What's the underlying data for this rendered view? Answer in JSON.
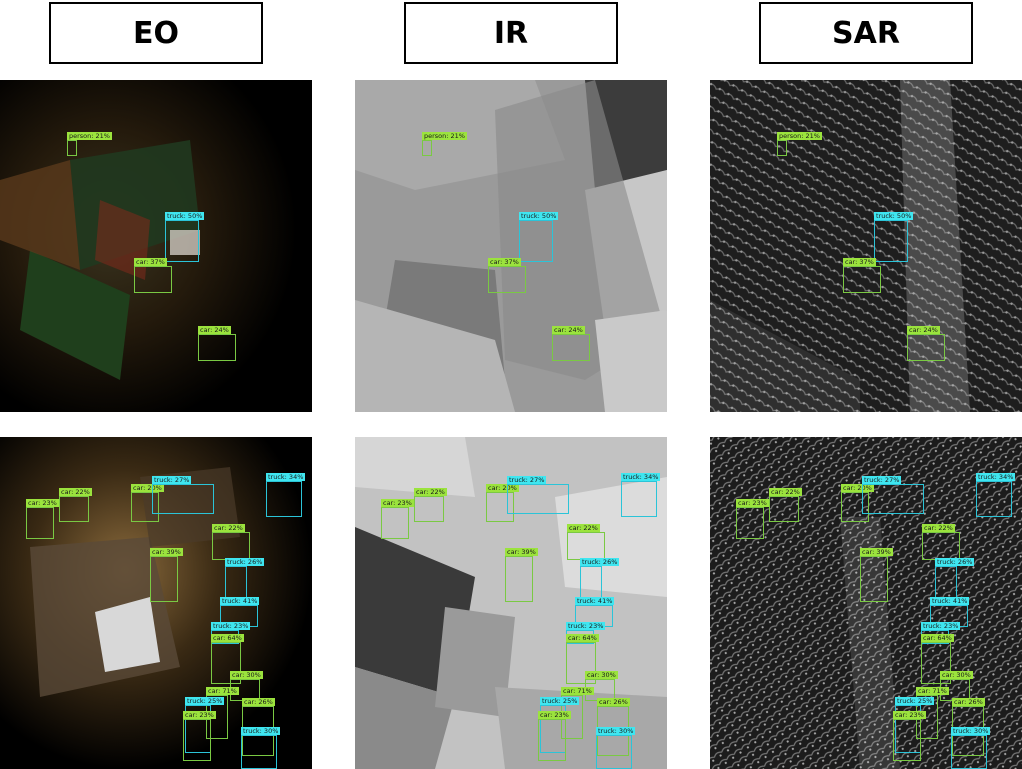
{
  "headers": [
    "EO",
    "IR",
    "SAR"
  ],
  "rows": [
    {
      "detections": [
        {
          "label": "person: 21%",
          "cls": "person"
        },
        {
          "label": "truck: 50%",
          "cls": "truck"
        },
        {
          "label": "car: 37%",
          "cls": "car"
        },
        {
          "label": "car: 24%",
          "cls": "car"
        }
      ]
    },
    {
      "detections": [
        {
          "label": "car: 23%",
          "cls": "car"
        },
        {
          "label": "car: 22%",
          "cls": "car"
        },
        {
          "label": "car: 20%",
          "cls": "car"
        },
        {
          "label": "truck: 27%",
          "cls": "truck"
        },
        {
          "label": "car: 22%",
          "cls": "car"
        },
        {
          "label": "truck: 34%",
          "cls": "truck"
        },
        {
          "label": "car: 39%",
          "cls": "car"
        },
        {
          "label": "truck: 26%",
          "cls": "truck"
        },
        {
          "label": "truck: 41%",
          "cls": "truck"
        },
        {
          "label": "truck: 23%",
          "cls": "truck"
        },
        {
          "label": "car: 64%",
          "cls": "car"
        },
        {
          "label": "car: 30%",
          "cls": "car"
        },
        {
          "label": "car: 71%",
          "cls": "car"
        },
        {
          "label": "truck: 25%",
          "cls": "truck"
        },
        {
          "label": "car: 23%",
          "cls": "car"
        },
        {
          "label": "car: 26%",
          "cls": "car"
        },
        {
          "label": "truck: 30%",
          "cls": "truck"
        }
      ]
    }
  ]
}
